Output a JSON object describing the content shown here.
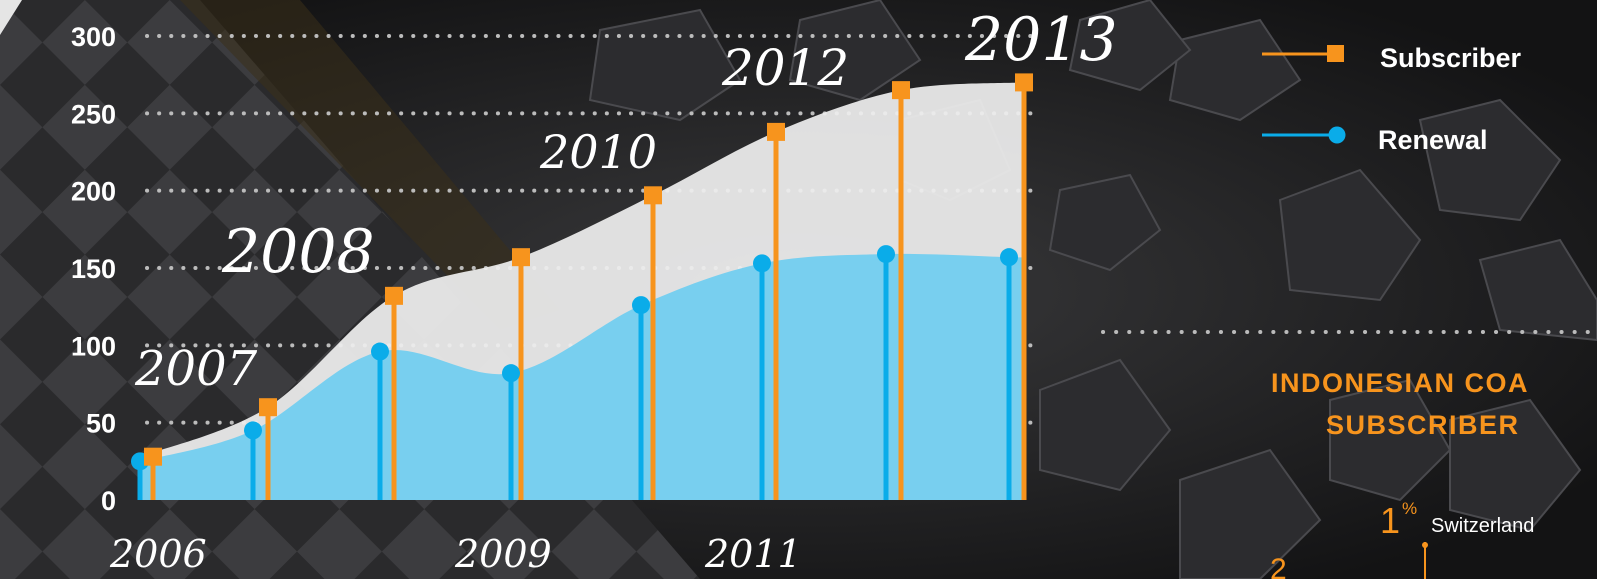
{
  "chart_data": {
    "type": "line",
    "ylim": [
      0,
      300
    ],
    "y_ticks": [
      "0",
      "50",
      "100",
      "150",
      "200",
      "250",
      "300"
    ],
    "categories": [
      "2006",
      "2007",
      "2008",
      "2009",
      "2010",
      "2011",
      "2012",
      "2013"
    ],
    "series": [
      {
        "name": "Subscriber",
        "color": "#f7941d",
        "marker": "square",
        "values": [
          28,
          60,
          132,
          157,
          197,
          238,
          265,
          270
        ]
      },
      {
        "name": "Renewal",
        "color": "#0aace9",
        "marker": "circle",
        "values": [
          25,
          45,
          96,
          82,
          126,
          153,
          159,
          157
        ]
      }
    ],
    "year_labels": [
      "2006",
      "2007",
      "2008",
      "2009",
      "2010",
      "2011",
      "2012",
      "2013"
    ],
    "grid": "dotted horizontal",
    "legend": "top-right"
  },
  "side_panel": {
    "title_line1": "INDONESIAN COA",
    "title_line2": "SUBSCRIBER",
    "share_value": "1",
    "share_sign": "%",
    "share_country": "Switzerland"
  },
  "colors": {
    "subscriber": "#f7941d",
    "renewal": "#0aace9",
    "subscriber_area": "#eeeeee",
    "renewal_area": "#78cfef"
  }
}
